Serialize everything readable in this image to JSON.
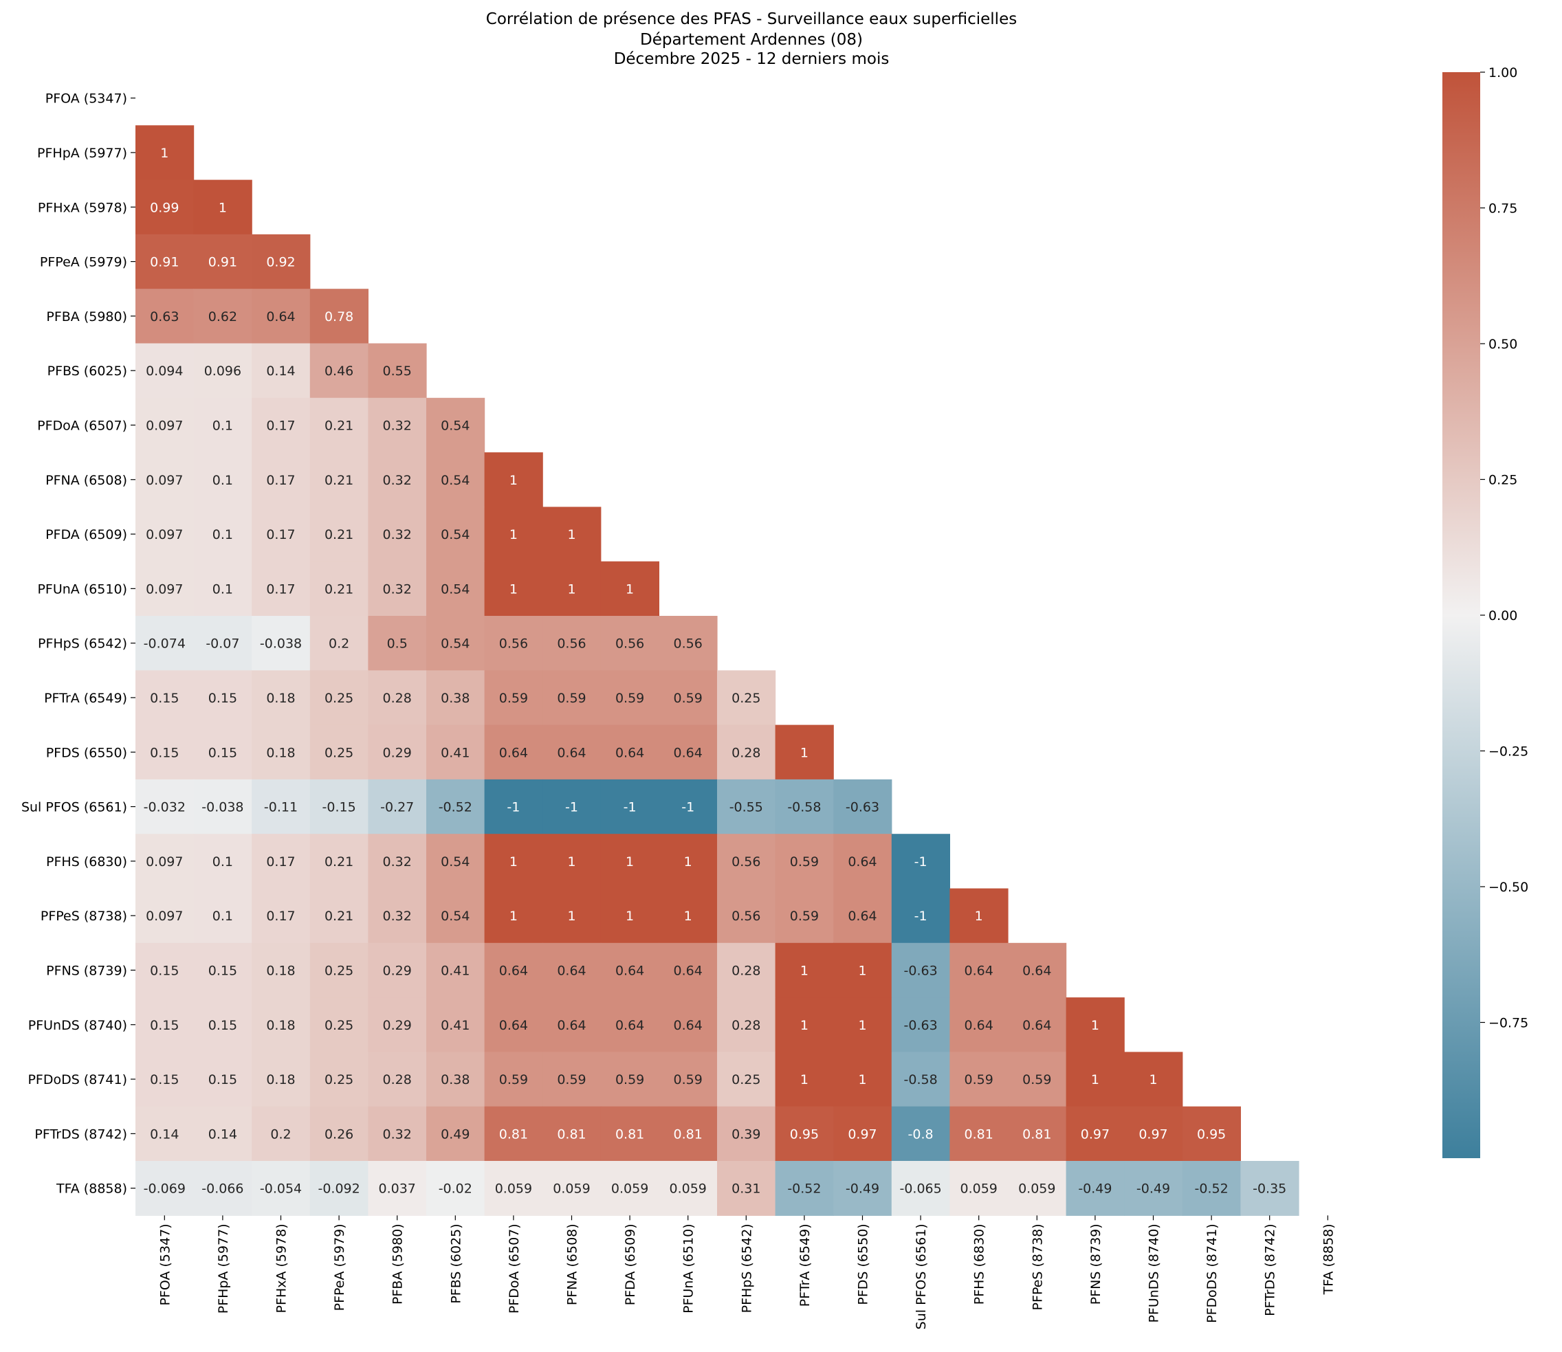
{
  "chart_data": {
    "type": "heatmap",
    "title_lines": [
      "Corrélation de présence des PFAS - Surveillance eaux superficielles",
      "Département Ardennes (08)",
      "Décembre 2025 - 12 derniers mois"
    ],
    "labels": [
      "PFOA (5347)",
      "PFHpA (5977)",
      "PFHxA (5978)",
      "PFPeA (5979)",
      "PFBA (5980)",
      "PFBS (6025)",
      "PFDoA (6507)",
      "PFNA (6508)",
      "PFDA (6509)",
      "PFUnA (6510)",
      "PFHpS (6542)",
      "PFTrA (6549)",
      "PFDS (6550)",
      "Sul PFOS (6561)",
      "PFHS (6830)",
      "PFPeS (8738)",
      "PFNS (8739)",
      "PFUnDS (8740)",
      "PFDoDS (8741)",
      "PFTrDS (8742)",
      "TFA (8858)"
    ],
    "annotations": [
      [],
      [
        "1"
      ],
      [
        "0.99",
        "1"
      ],
      [
        "0.91",
        "0.91",
        "0.92"
      ],
      [
        "0.63",
        "0.62",
        "0.64",
        "0.78"
      ],
      [
        "0.094",
        "0.096",
        "0.14",
        "0.46",
        "0.55"
      ],
      [
        "0.097",
        "0.1",
        "0.17",
        "0.21",
        "0.32",
        "0.54"
      ],
      [
        "0.097",
        "0.1",
        "0.17",
        "0.21",
        "0.32",
        "0.54",
        "1"
      ],
      [
        "0.097",
        "0.1",
        "0.17",
        "0.21",
        "0.32",
        "0.54",
        "1",
        "1"
      ],
      [
        "0.097",
        "0.1",
        "0.17",
        "0.21",
        "0.32",
        "0.54",
        "1",
        "1",
        "1"
      ],
      [
        "-0.074",
        "-0.07",
        "-0.038",
        "0.2",
        "0.5",
        "0.54",
        "0.56",
        "0.56",
        "0.56",
        "0.56"
      ],
      [
        "0.15",
        "0.15",
        "0.18",
        "0.25",
        "0.28",
        "0.38",
        "0.59",
        "0.59",
        "0.59",
        "0.59",
        "0.25"
      ],
      [
        "0.15",
        "0.15",
        "0.18",
        "0.25",
        "0.29",
        "0.41",
        "0.64",
        "0.64",
        "0.64",
        "0.64",
        "0.28",
        "1"
      ],
      [
        "-0.032",
        "-0.038",
        "-0.11",
        "-0.15",
        "-0.27",
        "-0.52",
        "-1",
        "-1",
        "-1",
        "-1",
        "-0.55",
        "-0.58",
        "-0.63"
      ],
      [
        "0.097",
        "0.1",
        "0.17",
        "0.21",
        "0.32",
        "0.54",
        "1",
        "1",
        "1",
        "1",
        "0.56",
        "0.59",
        "0.64",
        "-1"
      ],
      [
        "0.097",
        "0.1",
        "0.17",
        "0.21",
        "0.32",
        "0.54",
        "1",
        "1",
        "1",
        "1",
        "0.56",
        "0.59",
        "0.64",
        "-1",
        "1"
      ],
      [
        "0.15",
        "0.15",
        "0.18",
        "0.25",
        "0.29",
        "0.41",
        "0.64",
        "0.64",
        "0.64",
        "0.64",
        "0.28",
        "1",
        "1",
        "-0.63",
        "0.64",
        "0.64"
      ],
      [
        "0.15",
        "0.15",
        "0.18",
        "0.25",
        "0.29",
        "0.41",
        "0.64",
        "0.64",
        "0.64",
        "0.64",
        "0.28",
        "1",
        "1",
        "-0.63",
        "0.64",
        "0.64",
        "1"
      ],
      [
        "0.15",
        "0.15",
        "0.18",
        "0.25",
        "0.28",
        "0.38",
        "0.59",
        "0.59",
        "0.59",
        "0.59",
        "0.25",
        "1",
        "1",
        "-0.58",
        "0.59",
        "0.59",
        "1",
        "1"
      ],
      [
        "0.14",
        "0.14",
        "0.2",
        "0.26",
        "0.32",
        "0.49",
        "0.81",
        "0.81",
        "0.81",
        "0.81",
        "0.39",
        "0.95",
        "0.97",
        "-0.8",
        "0.81",
        "0.81",
        "0.97",
        "0.97",
        "0.95"
      ],
      [
        "-0.069",
        "-0.066",
        "-0.054",
        "-0.092",
        "0.037",
        "-0.02",
        "0.059",
        "0.059",
        "0.059",
        "0.059",
        "0.31",
        "-0.52",
        "-0.49",
        "-0.065",
        "0.059",
        "0.059",
        "-0.49",
        "-0.49",
        "-0.52",
        "-0.35"
      ]
    ],
    "colorbar": {
      "vmin": -1,
      "vmax": 1,
      "ticks": [
        1.0,
        0.75,
        0.5,
        0.25,
        0.0,
        -0.25,
        -0.5,
        -0.75
      ],
      "tick_labels": [
        "1.00",
        "0.75",
        "0.50",
        "0.25",
        "0.00",
        "−0.25",
        "−0.50",
        "−0.75"
      ]
    },
    "colormap": {
      "negative": "#3d7f9c",
      "middle": "#f2f1f1",
      "positive": "#c0533a"
    },
    "mask": "upper-triangle-including-diagonal",
    "xlabel": "",
    "ylabel": ""
  }
}
